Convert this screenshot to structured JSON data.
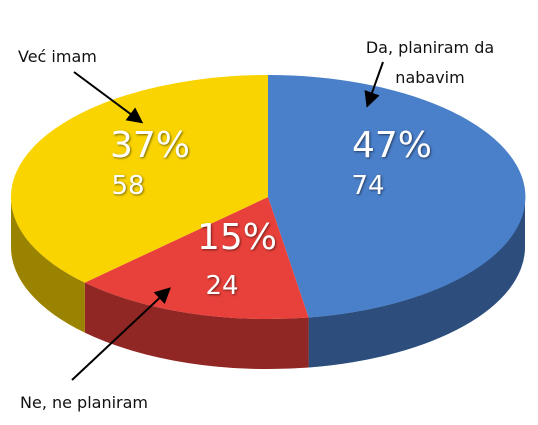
{
  "chart_data": {
    "type": "pie",
    "categories": [
      "Da, planiram da nabavim",
      "Ne, ne planiram",
      "Već imam"
    ],
    "values": [
      47,
      15,
      37
    ],
    "value_labels": [
      "47%",
      "15%",
      "37%"
    ],
    "counts": [
      74,
      24,
      58
    ],
    "colors": [
      "#4a7fc9",
      "#e8403a",
      "#f9d400"
    ]
  }
}
